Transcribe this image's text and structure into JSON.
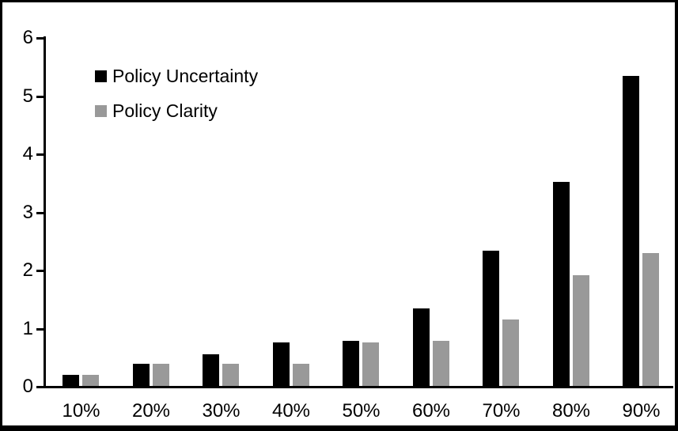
{
  "chart_data": {
    "type": "bar",
    "title": "",
    "xlabel": "",
    "ylabel": "",
    "categories": [
      "10%",
      "20%",
      "30%",
      "40%",
      "50%",
      "60%",
      "70%",
      "80%",
      "90%"
    ],
    "series": [
      {
        "name": "Policy Uncertainty",
        "color": "#000000",
        "values": [
          0.19,
          0.38,
          0.55,
          0.75,
          0.77,
          1.33,
          2.33,
          3.51,
          5.33
        ]
      },
      {
        "name": "Policy Clarity",
        "color": "#999999",
        "values": [
          0.19,
          0.38,
          0.38,
          0.38,
          0.75,
          0.77,
          1.14,
          1.9,
          2.29
        ]
      }
    ],
    "ylim": [
      0,
      6
    ],
    "yticks": [
      "0",
      "1",
      "2",
      "3",
      "4",
      "5",
      "6"
    ],
    "grid": false,
    "legend_position": "inside-top-left",
    "frame_color": "#000000",
    "background": "#ffffff"
  }
}
